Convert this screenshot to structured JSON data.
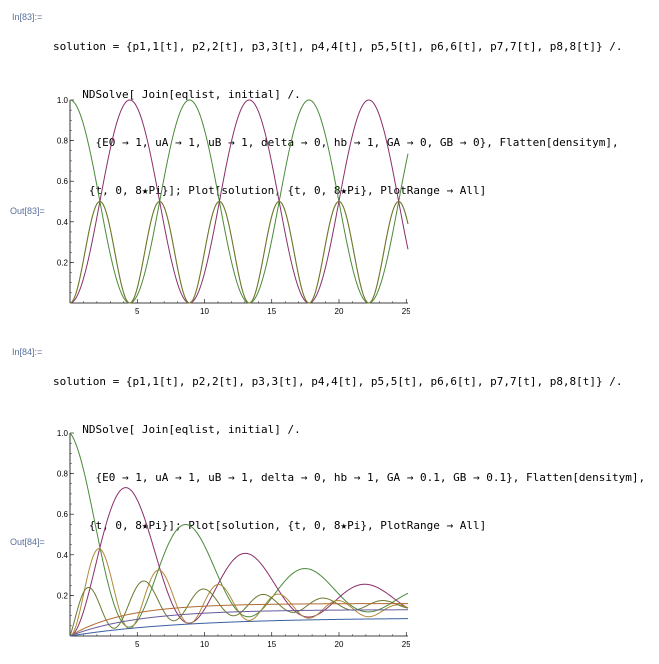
{
  "cells": [
    {
      "in_label": "In[83]:=",
      "out_label": "Out[83]=",
      "code_lines": [
        "solution = {p1,1[t], p2,2[t], p3,3[t], p4,4[t], p5,5[t], p6,6[t], p7,7[t], p8,8[t]} /.",
        "  NDSolve[ Join[eqlist, initial] /.",
        "    {E0 → 1, uA → 1, uB → 1, delta → 0, hb → 1, GA → 0, GB → 0}, Flatten[densitym],",
        "   {t, 0, 8★Pi}]; Plot[solution, {t, 0, 8★Pi}, PlotRange → All]"
      ],
      "chart_data": {
        "type": "line",
        "xlim": [
          0,
          25.13
        ],
        "ylim": [
          0,
          1.0
        ],
        "xticks": [
          "5",
          "10",
          "15",
          "20",
          "25"
        ],
        "yticks": [
          "1.0",
          "0.8",
          "0.6",
          "0.4",
          "0.2"
        ],
        "series": [
          {
            "color": "#4a8a3a",
            "model": "cos2",
            "period": 8.886,
            "amp": 1.0,
            "phase": 0
          },
          {
            "color": "#8a2f6a",
            "model": "sin2",
            "period": 8.886,
            "amp": 1.0,
            "phase": 0
          },
          {
            "color": "#b08a3a",
            "model": "sin2",
            "period": 4.443,
            "amp": 0.5,
            "phase": 0
          },
          {
            "color": "#6a7a30",
            "model": "sin2",
            "period": 4.443,
            "amp": 0.5,
            "phase": 0
          }
        ]
      }
    },
    {
      "in_label": "In[84]:=",
      "out_label": "Out[84]=",
      "code_lines": [
        "solution = {p1,1[t], p2,2[t], p3,3[t], p4,4[t], p5,5[t], p6,6[t], p7,7[t], p8,8[t]} /.",
        "  NDSolve[ Join[eqlist, initial] /.",
        "    {E0 → 1, uA → 1, uB → 1, delta → 0, hb → 1, GA → 0.1, GB → 0.1}, Flatten[densitym],",
        "   {t, 0, 8★Pi}]; Plot[solution, {t, 0, 8★Pi}, PlotRange → All]"
      ],
      "chart_data": {
        "type": "line",
        "xlim": [
          0,
          25.13
        ],
        "ylim": [
          0,
          1.0
        ],
        "xticks": [
          "5",
          "10",
          "15",
          "20",
          "25"
        ],
        "yticks": [
          "1.0",
          "0.8",
          "0.6",
          "0.4",
          "0.2"
        ],
        "series": [
          {
            "color": "#4a8a3a",
            "model": "damped_cos2",
            "period": 8.886,
            "amp": 1.0,
            "decay": 0.085,
            "floor": 0.14
          },
          {
            "color": "#8a2f6a",
            "model": "damped_sin2",
            "period": 8.886,
            "amp": 1.0,
            "decay": 0.085,
            "floor": 0.12
          },
          {
            "color": "#b08a3a",
            "model": "damped_sin2",
            "period": 4.443,
            "amp": 0.5,
            "decay": 0.09,
            "floor": 0.11
          },
          {
            "color": "#6a7a30",
            "model": "damped_sin2_shift",
            "period": 4.443,
            "amp": 0.35,
            "decay": 0.09,
            "floor": 0.15
          },
          {
            "color": "#b06a30",
            "model": "rise",
            "amp": 0.16,
            "rate": 0.25
          },
          {
            "color": "#6a5a9a",
            "model": "rise",
            "amp": 0.13,
            "rate": 0.2
          },
          {
            "color": "#3a60a0",
            "model": "rise",
            "amp": 0.09,
            "rate": 0.12
          }
        ]
      }
    }
  ]
}
